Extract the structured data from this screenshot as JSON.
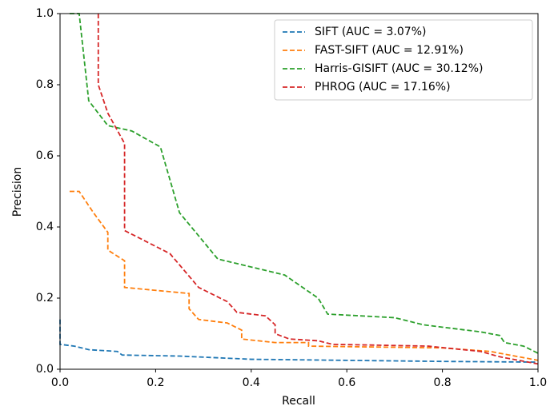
{
  "chart_data": {
    "type": "line",
    "xlabel": "Recall",
    "ylabel": "Precision",
    "xlim": [
      0,
      1
    ],
    "ylim": [
      0,
      1
    ],
    "xticks": [
      {
        "value": 0,
        "label": "0.0"
      },
      {
        "value": 0.2,
        "label": "0.2"
      },
      {
        "value": 0.4,
        "label": "0.4"
      },
      {
        "value": 0.6,
        "label": "0.6"
      },
      {
        "value": 0.8,
        "label": "0.8"
      },
      {
        "value": 1,
        "label": "1.0"
      }
    ],
    "yticks": [
      {
        "value": 0,
        "label": "0.0"
      },
      {
        "value": 0.2,
        "label": "0.2"
      },
      {
        "value": 0.4,
        "label": "0.4"
      },
      {
        "value": 0.6,
        "label": "0.6"
      },
      {
        "value": 0.8,
        "label": "0.8"
      },
      {
        "value": 1,
        "label": "1.0"
      }
    ],
    "legend": "upper right",
    "series": [
      {
        "name": "SIFT (AUC = 3.07%)",
        "color": "#1f77b4",
        "x": [
          0,
          0,
          0.03,
          0.06,
          0.12,
          0.13,
          0.25,
          0.4,
          0.6,
          0.8,
          1.0
        ],
        "values": [
          0.14,
          0.07,
          0.065,
          0.055,
          0.05,
          0.04,
          0.037,
          0.028,
          0.025,
          0.022,
          0.02
        ]
      },
      {
        "name": "FAST-SIFT (AUC = 12.91%)",
        "color": "#ff7f0e",
        "x": [
          0.02,
          0.04,
          0.07,
          0.1,
          0.1,
          0.135,
          0.135,
          0.27,
          0.27,
          0.29,
          0.35,
          0.38,
          0.38,
          0.45,
          0.52,
          0.52,
          0.8,
          0.9,
          1.0
        ],
        "values": [
          0.5,
          0.5,
          0.44,
          0.385,
          0.335,
          0.305,
          0.23,
          0.213,
          0.17,
          0.14,
          0.13,
          0.11,
          0.085,
          0.075,
          0.075,
          0.065,
          0.06,
          0.05,
          0.025
        ]
      },
      {
        "name": "Harris-GISIFT (AUC = 30.12%)",
        "color": "#2ca02c",
        "x": [
          0.02,
          0.04,
          0.06,
          0.1,
          0.15,
          0.21,
          0.25,
          0.33,
          0.47,
          0.54,
          0.56,
          0.7,
          0.76,
          0.88,
          0.92,
          0.93,
          0.97,
          1.0
        ],
        "values": [
          1.0,
          1.0,
          0.755,
          0.685,
          0.67,
          0.625,
          0.44,
          0.31,
          0.265,
          0.2,
          0.155,
          0.145,
          0.125,
          0.105,
          0.095,
          0.075,
          0.065,
          0.045
        ]
      },
      {
        "name": "PHROG (AUC = 17.16%)",
        "color": "#d62728",
        "x": [
          0.08,
          0.08,
          0.1,
          0.135,
          0.135,
          0.23,
          0.29,
          0.35,
          0.37,
          0.43,
          0.45,
          0.45,
          0.48,
          0.54,
          0.57,
          0.77,
          0.88,
          0.92,
          1.0
        ],
        "values": [
          1.0,
          0.8,
          0.72,
          0.635,
          0.39,
          0.325,
          0.23,
          0.19,
          0.16,
          0.15,
          0.125,
          0.1,
          0.085,
          0.08,
          0.07,
          0.065,
          0.05,
          0.035,
          0.015
        ]
      }
    ]
  }
}
